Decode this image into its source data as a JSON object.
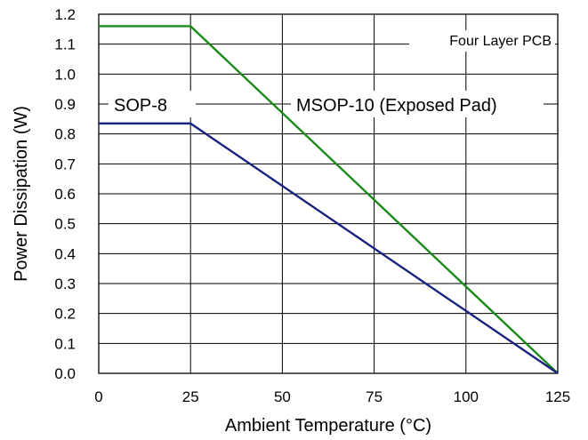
{
  "chart_data": {
    "type": "line",
    "title": "",
    "xlabel": "Ambient Temperature (°C)",
    "ylabel": "Power Dissipation (W)",
    "xlim": [
      0,
      125
    ],
    "ylim": [
      0,
      1.2
    ],
    "x_ticks": [
      0,
      25,
      50,
      75,
      100,
      125
    ],
    "x_tick_labels": [
      "0",
      "25",
      "50",
      "75",
      "100",
      "125"
    ],
    "y_ticks": [
      0,
      0.1,
      0.2,
      0.3,
      0.4,
      0.5,
      0.6,
      0.7,
      0.8,
      0.9,
      1.0,
      1.1,
      1.2
    ],
    "y_tick_labels": [
      "0.0",
      "0.1",
      "0.2",
      "0.3",
      "0.4",
      "0.5",
      "0.6",
      "0.7",
      "0.8",
      "0.9",
      "1.0",
      "1.1",
      "1.2"
    ],
    "grid": true,
    "series": [
      {
        "name": "MSOP-10 (Exposed Pad)",
        "color": "#1a8a1a",
        "x": [
          0,
          25,
          125
        ],
        "y": [
          1.16,
          1.16,
          0
        ]
      },
      {
        "name": "SOP-8",
        "color": "#1a237e",
        "x": [
          0,
          25,
          125
        ],
        "y": [
          0.835,
          0.835,
          0
        ]
      }
    ],
    "annotations": {
      "board": "Four Layer PCB",
      "sop8": "SOP-8",
      "msop10": "MSOP-10 (Exposed Pad)"
    }
  }
}
